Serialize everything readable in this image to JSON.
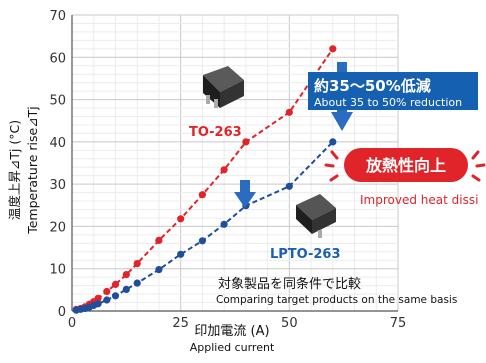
{
  "chart_data": {
    "type": "line",
    "xlabel": "印加電流 (A)",
    "xlabel_en": "Applied current",
    "ylabel": "温度上昇⊿Tj (°C)",
    "ylabel_en": "Temperature rise⊿Tj",
    "xlim": [
      0,
      75
    ],
    "ylim": [
      0,
      70
    ],
    "x_ticks": [
      "0",
      "25",
      "50",
      "75"
    ],
    "y_ticks": [
      "0",
      "10",
      "20",
      "30",
      "40",
      "50",
      "60",
      "70"
    ],
    "grid": true,
    "series": [
      {
        "name": "TO-263",
        "color": "#e0242a",
        "points": [
          [
            1,
            0.4
          ],
          [
            2,
            0.6
          ],
          [
            3,
            1.0
          ],
          [
            4,
            1.6
          ],
          [
            5,
            2.2
          ],
          [
            6,
            3.0
          ],
          [
            8,
            4.6
          ],
          [
            10,
            6.3
          ],
          [
            12.5,
            8.6
          ],
          [
            15,
            11.2
          ],
          [
            20,
            16.7
          ],
          [
            25,
            21.8
          ],
          [
            30,
            27.5
          ],
          [
            35,
            33.4
          ],
          [
            40,
            40.0
          ],
          [
            50,
            47.0
          ],
          [
            60,
            62.0
          ]
        ]
      },
      {
        "name": "LPTO-263",
        "color": "#1f4e9c",
        "points": [
          [
            1,
            0.2
          ],
          [
            2,
            0.4
          ],
          [
            3,
            0.6
          ],
          [
            4,
            0.9
          ],
          [
            5,
            1.3
          ],
          [
            6,
            1.7
          ],
          [
            8,
            2.6
          ],
          [
            10,
            3.6
          ],
          [
            12.5,
            5.1
          ],
          [
            15,
            6.6
          ],
          [
            20,
            9.8
          ],
          [
            25,
            13.4
          ],
          [
            30,
            16.6
          ],
          [
            35,
            20.5
          ],
          [
            40,
            24.9
          ],
          [
            50,
            29.5
          ],
          [
            60,
            40.0
          ]
        ]
      }
    ],
    "annotations": {
      "reduction_jp": "約35～50%低減",
      "reduction_en": "About 35 to 50% reduction",
      "improved_jp": "放熱性向上",
      "improved_en": "Improved heat dissi",
      "compare_jp": "対象製品を同条件で比較",
      "compare_en": "Comparing target products on the same basis"
    },
    "colors": {
      "red": "#e0242a",
      "blue": "#1f4e9c",
      "banner": "#1560b0",
      "arrow": "#2a6cc0"
    }
  }
}
